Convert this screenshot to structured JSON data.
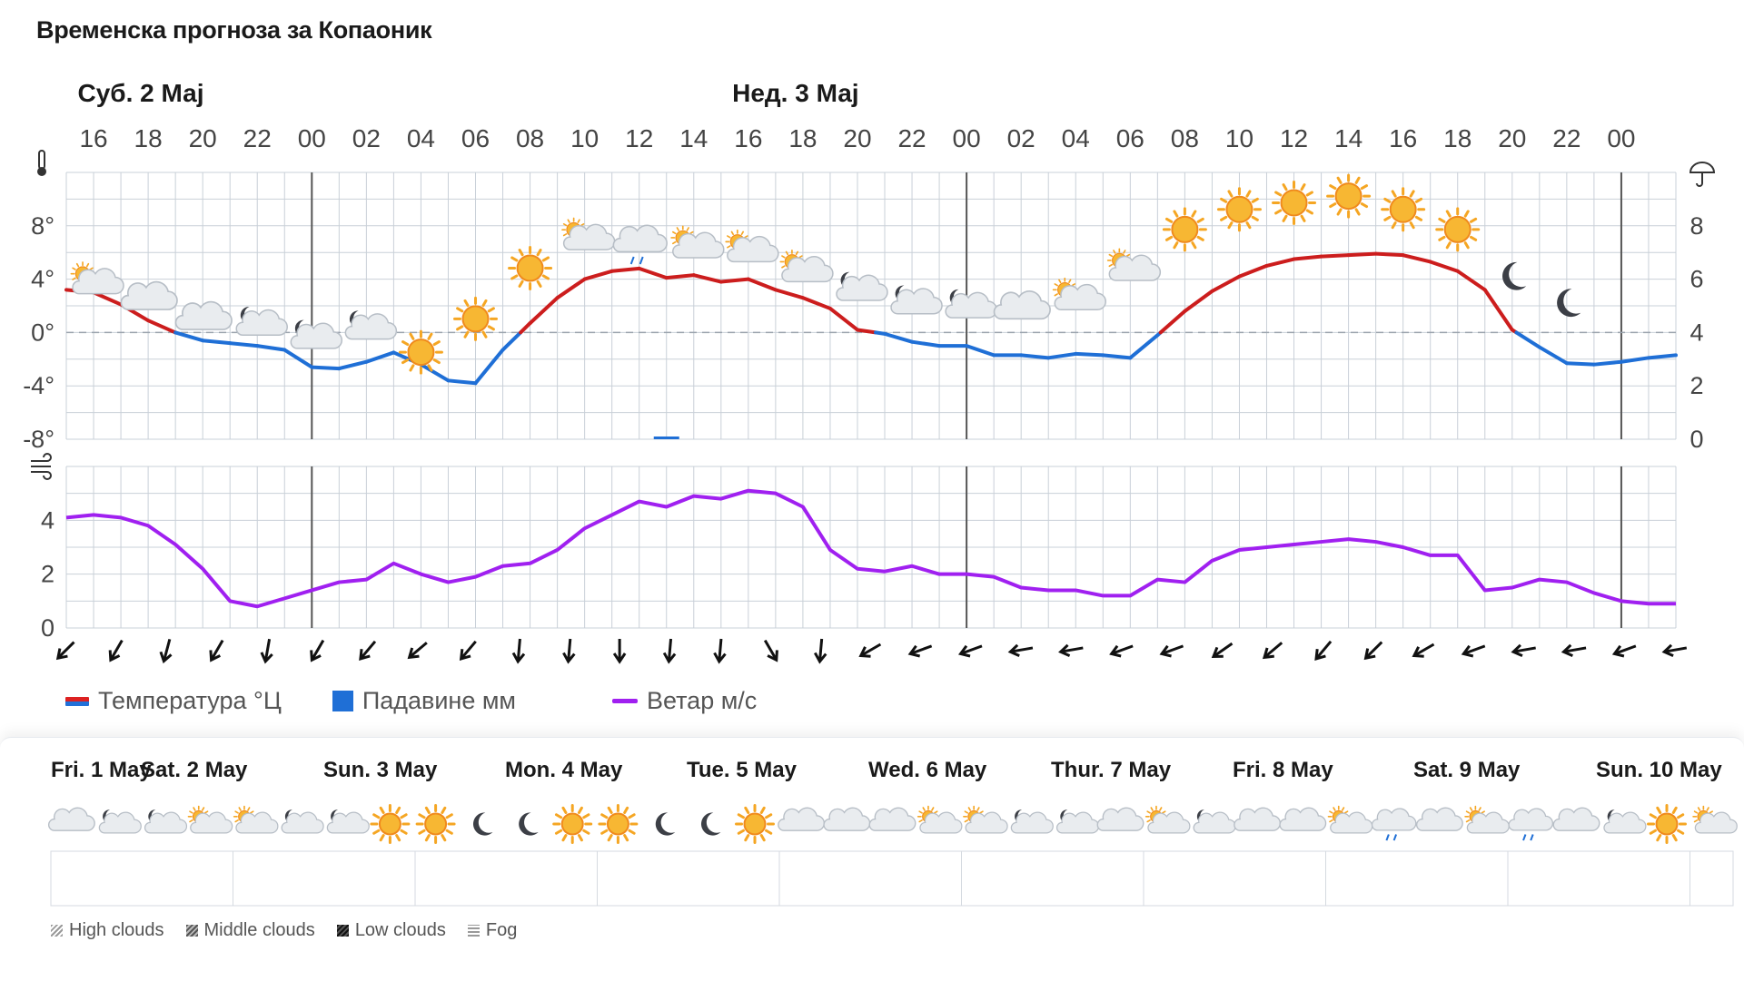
{
  "title": "Временска прогноза за Копаоник",
  "chart_data": {
    "type": "line",
    "day_headers": [
      {
        "label": "Суб. 2 Мај",
        "hour_index": 4
      },
      {
        "label": "Нед. 3 Мај",
        "hour_index": 16
      }
    ],
    "hour_ticks": [
      "16",
      "18",
      "20",
      "22",
      "00",
      "02",
      "04",
      "06",
      "08",
      "10",
      "12",
      "14",
      "16",
      "18",
      "20",
      "22",
      "00",
      "02",
      "04",
      "06",
      "08",
      "10",
      "12",
      "14",
      "16",
      "18",
      "20",
      "22",
      "00"
    ],
    "temperature": {
      "name": "Температура °Ц",
      "unit": "°C",
      "ylim": [
        -8,
        12
      ],
      "yticks": [
        "8°",
        "4°",
        "0°",
        "-4°",
        "-8°"
      ],
      "ytick_values": [
        8,
        4,
        0,
        -4,
        -8
      ],
      "x": [
        15,
        16,
        17,
        18,
        19,
        20,
        21,
        22,
        23,
        24,
        25,
        26,
        27,
        28,
        29,
        30,
        31,
        32,
        33,
        34,
        35,
        36,
        37,
        38,
        39,
        40,
        41,
        42,
        43,
        44,
        45,
        46,
        47,
        48,
        49,
        50,
        51,
        52,
        53,
        54,
        55,
        56,
        57,
        58,
        59,
        60,
        61,
        62,
        63,
        64,
        65,
        66,
        67,
        68,
        69,
        70,
        71,
        72,
        73,
        74
      ],
      "values": [
        3.2,
        3.0,
        2.1,
        0.9,
        0.0,
        -0.6,
        -0.8,
        -1.0,
        -1.3,
        -2.6,
        -2.7,
        -2.2,
        -1.5,
        -2.4,
        -3.6,
        -3.8,
        -1.3,
        0.7,
        2.6,
        4.0,
        4.6,
        4.8,
        4.1,
        4.3,
        3.8,
        4.0,
        3.2,
        2.6,
        1.8,
        0.2,
        -0.1,
        -0.7,
        -1.0,
        -1.0,
        -1.7,
        -1.7,
        -1.9,
        -1.6,
        -1.7,
        -1.9,
        -0.2,
        1.6,
        3.1,
        4.2,
        5.0,
        5.5,
        5.7,
        5.8,
        5.9,
        5.8,
        5.3,
        4.6,
        3.2,
        0.2,
        -1.1,
        -2.3,
        -2.4,
        -2.2,
        -1.9,
        -1.7
      ],
      "colors": {
        "above_zero": "#cc1d1d",
        "below_zero": "#1f6fd6"
      }
    },
    "precipitation": {
      "name": "Падавине мм",
      "unit": "mm",
      "ylim": [
        0,
        10
      ],
      "yticks": [
        "8",
        "6",
        "4",
        "2",
        "0"
      ],
      "ytick_values": [
        8,
        6,
        4,
        2,
        0
      ],
      "bars": [
        {
          "hour": 37,
          "value": 0.1
        }
      ],
      "color": "#1f6fd6"
    },
    "wind": {
      "name": "Ветар м/с",
      "unit": "m/s",
      "ylim": [
        0,
        6
      ],
      "yticks": [
        "4",
        "2",
        "0"
      ],
      "ytick_values": [
        4,
        2,
        0
      ],
      "x": [
        15,
        16,
        17,
        18,
        19,
        20,
        21,
        22,
        23,
        24,
        25,
        26,
        27,
        28,
        29,
        30,
        31,
        32,
        33,
        34,
        35,
        36,
        37,
        38,
        39,
        40,
        41,
        42,
        43,
        44,
        45,
        46,
        47,
        48,
        49,
        50,
        51,
        52,
        53,
        54,
        55,
        56,
        57,
        58,
        59,
        60,
        61,
        62,
        63,
        64,
        65,
        66,
        67,
        68,
        69,
        70,
        71,
        72,
        73,
        74
      ],
      "values": [
        4.1,
        4.2,
        4.1,
        3.8,
        3.1,
        2.2,
        1.0,
        0.8,
        1.1,
        1.4,
        1.7,
        1.8,
        2.4,
        2.0,
        1.7,
        1.9,
        2.3,
        2.4,
        2.9,
        3.7,
        4.2,
        4.7,
        4.5,
        4.9,
        4.8,
        5.1,
        5.0,
        4.5,
        2.9,
        2.2,
        2.1,
        2.3,
        2.0,
        2.0,
        1.9,
        1.5,
        1.4,
        1.4,
        1.2,
        1.2,
        1.8,
        1.7,
        2.5,
        2.9,
        3.0,
        3.1,
        3.2,
        3.3,
        3.2,
        3.0,
        2.7,
        2.7,
        1.4,
        1.5,
        1.8,
        1.7,
        1.3,
        1.0,
        0.9,
        0.9
      ],
      "color": "#a020f0",
      "direction_deg": [
        45,
        30,
        15,
        30,
        10,
        30,
        40,
        50,
        40,
        5,
        5,
        0,
        5,
        5,
        -30,
        5,
        60,
        70,
        70,
        80,
        80,
        70,
        70,
        55,
        50,
        40,
        45,
        60,
        70,
        80,
        80,
        70,
        80
      ]
    },
    "weather_icons": [
      {
        "hour": 16,
        "icon": "partly-cloudy-day-icon",
        "temp": 2.5
      },
      {
        "hour": 18,
        "icon": "cloud-icon",
        "temp": 1.1
      },
      {
        "hour": 20,
        "icon": "cloud-icon",
        "temp": -0.4
      },
      {
        "hour": 22,
        "icon": "partly-cloudy-night-icon",
        "temp": -0.6
      },
      {
        "hour": 24,
        "icon": "partly-cloudy-night-icon",
        "temp": -1.6
      },
      {
        "hour": 26,
        "icon": "partly-cloudy-night-icon",
        "temp": -0.9
      },
      {
        "hour": 28,
        "icon": "sun-icon",
        "temp": -2.7
      },
      {
        "hour": 30,
        "icon": "sun-icon",
        "temp": -0.2
      },
      {
        "hour": 32,
        "icon": "sun-icon",
        "temp": 3.6
      },
      {
        "hour": 34,
        "icon": "partly-cloudy-day-icon",
        "temp": 5.8
      },
      {
        "hour": 36,
        "icon": "rain-cloud-icon",
        "temp": 5.4
      },
      {
        "hour": 38,
        "icon": "partly-cloudy-day-icon",
        "temp": 5.2
      },
      {
        "hour": 40,
        "icon": "partly-cloudy-day-icon",
        "temp": 4.9
      },
      {
        "hour": 42,
        "icon": "partly-cloudy-day-icon",
        "temp": 3.4
      },
      {
        "hour": 44,
        "icon": "partly-cloudy-night-icon",
        "temp": 2.0
      },
      {
        "hour": 46,
        "icon": "partly-cloudy-night-icon",
        "temp": 1.0
      },
      {
        "hour": 48,
        "icon": "partly-cloudy-night-icon",
        "temp": 0.7
      },
      {
        "hour": 50,
        "icon": "cloud-icon",
        "temp": 0.4
      },
      {
        "hour": 52,
        "icon": "partly-cloudy-day-icon",
        "temp": 1.3
      },
      {
        "hour": 54,
        "icon": "partly-cloudy-day-icon",
        "temp": 3.5
      },
      {
        "hour": 56,
        "icon": "sun-icon",
        "temp": 6.5
      },
      {
        "hour": 58,
        "icon": "sun-icon",
        "temp": 8.0
      },
      {
        "hour": 60,
        "icon": "sun-icon",
        "temp": 8.5
      },
      {
        "hour": 62,
        "icon": "sun-icon",
        "temp": 9.0
      },
      {
        "hour": 64,
        "icon": "sun-icon",
        "temp": 8.0
      },
      {
        "hour": 66,
        "icon": "sun-icon",
        "temp": 6.5
      },
      {
        "hour": 68,
        "icon": "moon-icon",
        "temp": 3.0
      },
      {
        "hour": 70,
        "icon": "moon-icon",
        "temp": 1.0
      }
    ],
    "legend": [
      {
        "key": "temperature",
        "label": "Температура °Ц"
      },
      {
        "key": "precipitation",
        "label": "Падавине мм"
      },
      {
        "key": "wind",
        "label": "Ветар м/с"
      }
    ]
  },
  "outlook": {
    "days": [
      "Fri. 1 May",
      "Sat. 2 May",
      "Sun. 3 May",
      "Mon. 4 May",
      "Tue. 5 May",
      "Wed. 6 May",
      "Thur. 7 May",
      "Fri. 8 May",
      "Sat. 9 May",
      "Sun. 10 May"
    ],
    "icons": [
      "cloud-icon",
      "partly-cloudy-night-icon",
      "partly-cloudy-night-icon",
      "partly-cloudy-day-icon",
      "partly-cloudy-day-icon",
      "partly-cloudy-night-icon",
      "partly-cloudy-night-icon",
      "sun-icon",
      "sun-icon",
      "moon-icon",
      "moon-icon",
      "sun-icon",
      "sun-icon",
      "moon-icon",
      "moon-icon",
      "sun-icon",
      "cloud-icon",
      "cloud-icon",
      "cloud-icon",
      "partly-cloudy-day-icon",
      "partly-cloudy-day-icon",
      "partly-cloudy-night-icon",
      "partly-cloudy-night-icon",
      "cloud-icon",
      "partly-cloudy-day-icon",
      "partly-cloudy-night-icon",
      "cloud-icon",
      "cloud-icon",
      "partly-cloudy-day-icon",
      "rain-cloud-icon",
      "cloud-icon",
      "partly-cloudy-day-icon",
      "rain-cloud-icon",
      "cloud-icon",
      "partly-cloudy-night-icon",
      "sun-icon",
      "partly-cloudy-day-icon"
    ],
    "cloud_legend": [
      "High clouds",
      "Middle clouds",
      "Low clouds",
      "Fog"
    ]
  }
}
